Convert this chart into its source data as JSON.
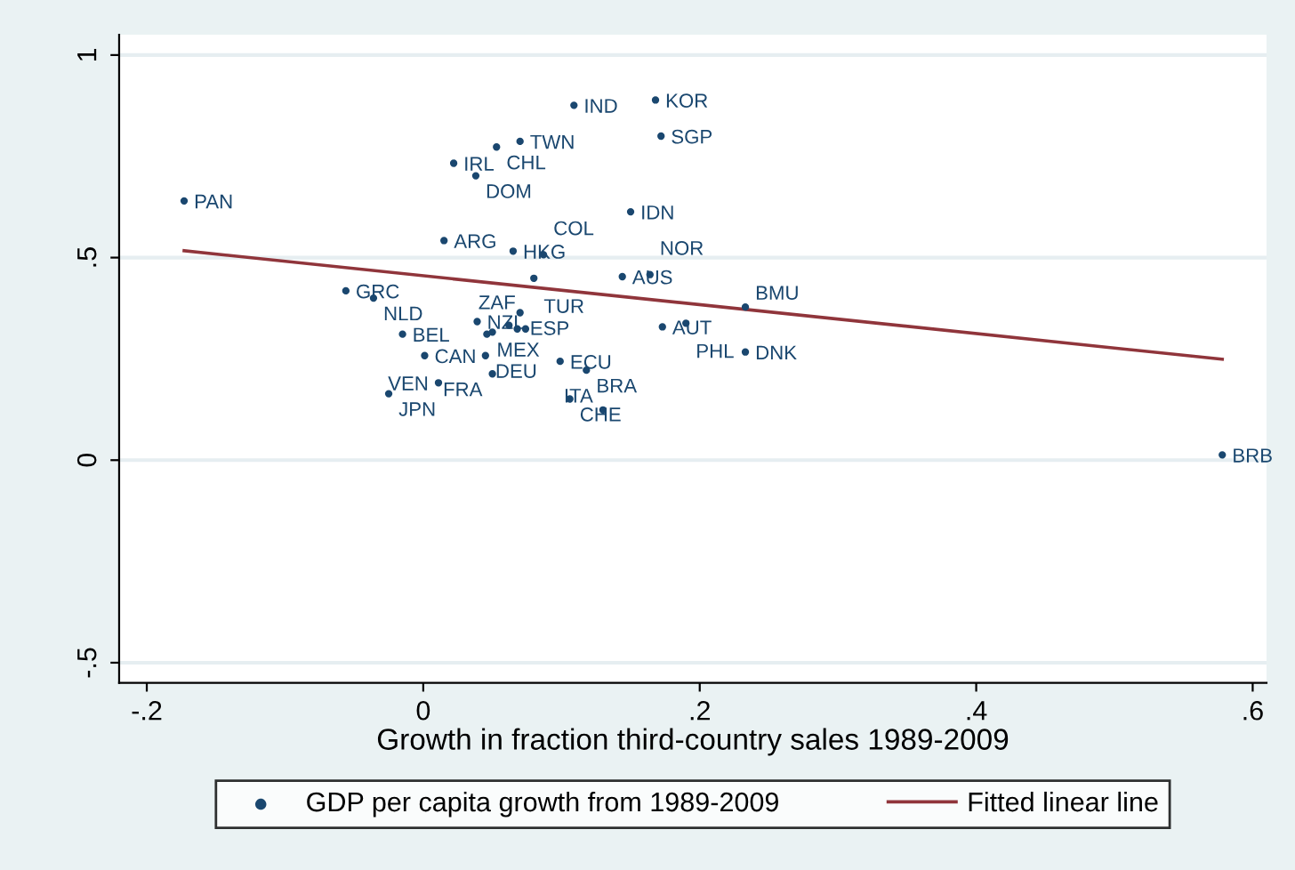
{
  "chart_data": {
    "type": "scatter",
    "xlabel": "Growth in fraction third-country sales 1989-2009",
    "xlim": [
      -0.22,
      0.61
    ],
    "ylim": [
      -0.55,
      1.05
    ],
    "xticks": [
      {
        "value": -0.2,
        "label": "-.2"
      },
      0,
      {
        "value": 0.2,
        "label": ".2"
      },
      {
        "value": 0.4,
        "label": ".4"
      },
      {
        "value": 0.6,
        "label": ".6"
      }
    ],
    "yticks": [
      {
        "value": -0.5,
        "label": "-.5"
      },
      0,
      {
        "value": 0.5,
        "label": ".5"
      },
      1
    ],
    "grid": "y",
    "legend": "bottom",
    "series": [
      {
        "name": "GDP per capita growth from 1989-2009",
        "marker": "circle",
        "color": "#1a476f",
        "x": [
          -0.173,
          0.109,
          0.168,
          0.172,
          0.07,
          0.053,
          0.022,
          0.038,
          0.15,
          0.015,
          0.065,
          0.087,
          0.08,
          0.144,
          0.164,
          -0.056,
          -0.036,
          0.233,
          0.07,
          0.039,
          -0.015,
          0.173,
          0.19,
          0.046,
          0.074,
          0.062,
          0.05,
          0.068,
          0.001,
          0.045,
          0.05,
          0.099,
          0.118,
          0.011,
          -0.025,
          0.106,
          0.13,
          0.233,
          0.578
        ],
        "values": [
          0.64,
          0.876,
          0.889,
          0.8,
          0.787,
          0.773,
          0.733,
          0.702,
          0.613,
          0.542,
          0.516,
          0.507,
          0.449,
          0.453,
          0.458,
          0.418,
          0.4,
          0.378,
          0.364,
          0.342,
          0.311,
          0.329,
          0.338,
          0.311,
          0.324,
          0.333,
          0.316,
          0.324,
          0.258,
          0.258,
          0.213,
          0.244,
          0.222,
          0.191,
          0.164,
          0.151,
          0.124,
          0.267,
          0.013
        ],
        "value_labels": [
          "PAN",
          "IND",
          "KOR",
          "SGP",
          "TWN",
          "CHL",
          "IRL",
          "DOM",
          "IDN",
          "ARG",
          "HKG",
          "COL",
          "TUR",
          "AUS",
          "NOR",
          "GRC",
          "NLD",
          "BMU",
          "ESP",
          "NZL",
          "BEL",
          "AUT",
          "PHL",
          "MEX",
          "ZAF",
          null,
          null,
          null,
          "CAN",
          "DEU",
          "FRA",
          "ECU",
          "BRA",
          "VEN",
          "JPN",
          "CHE",
          "ITA",
          "DNK",
          "BRB"
        ]
      },
      {
        "name": "Fitted linear line",
        "type": "line",
        "color": "#90353b",
        "x": [
          -0.173,
          0.578
        ],
        "values": [
          0.517,
          0.249
        ]
      }
    ]
  }
}
